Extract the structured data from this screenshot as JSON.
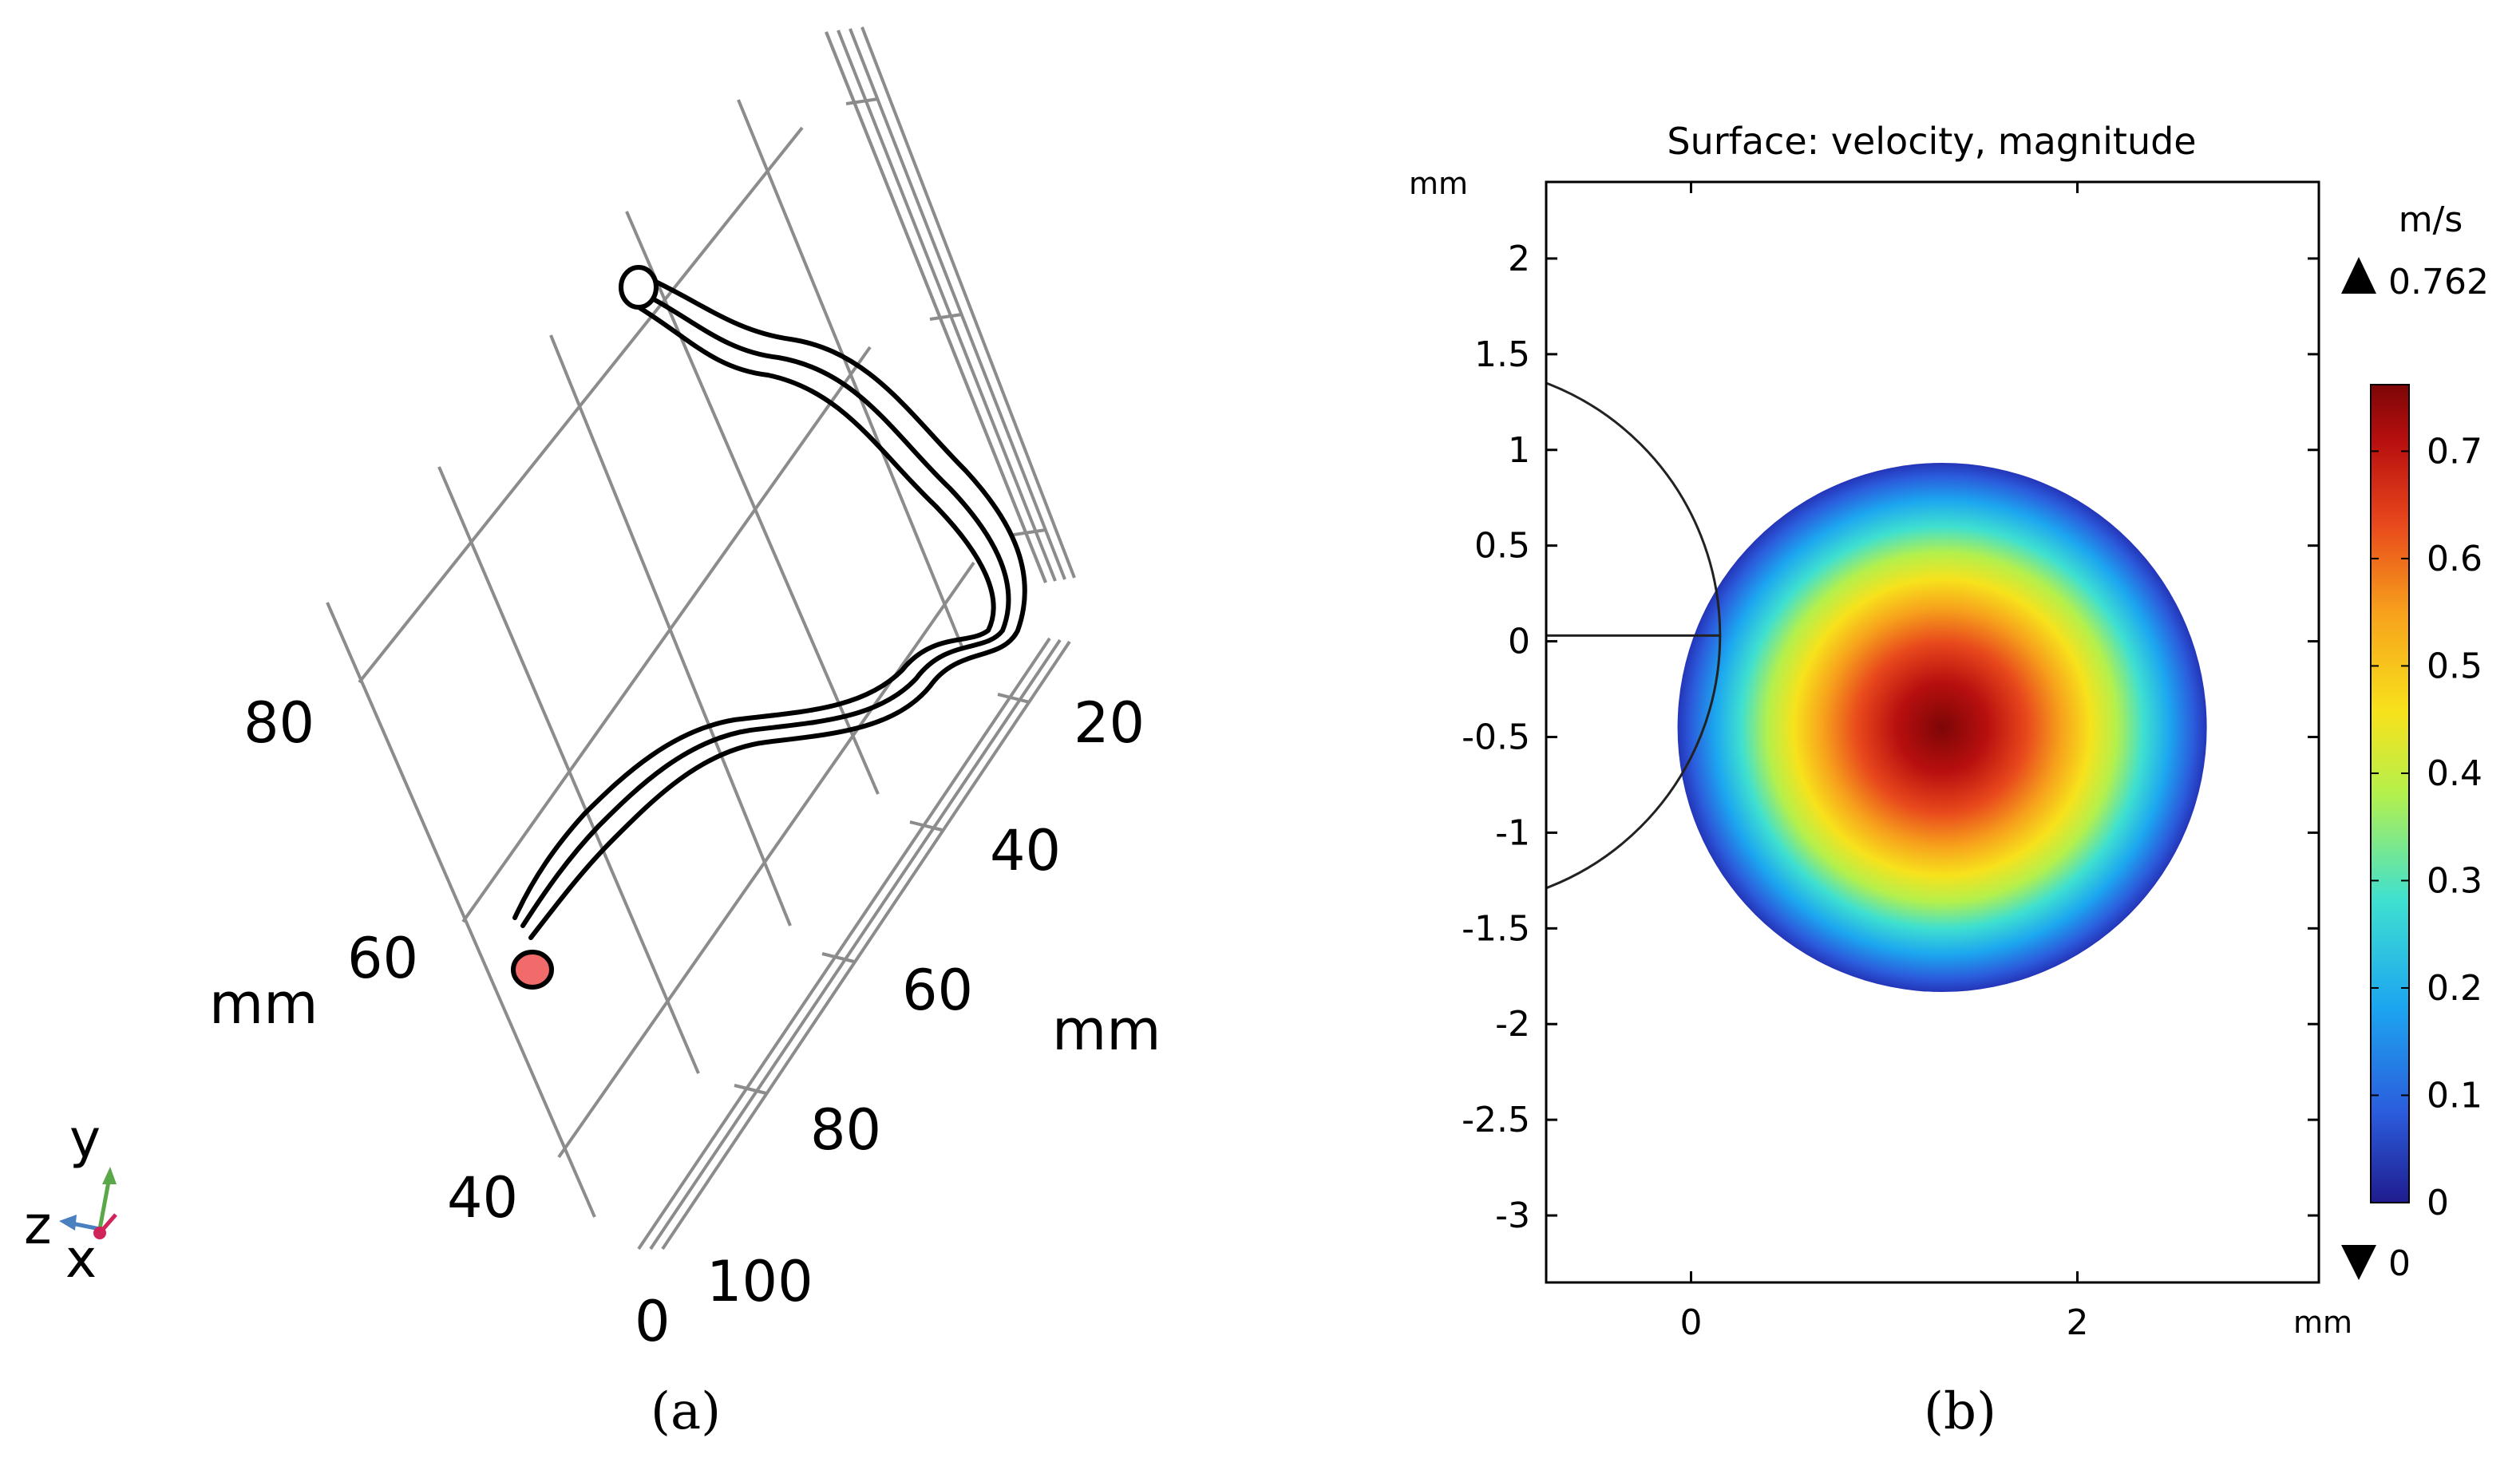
{
  "captions": {
    "a": "(a)",
    "b": "(b)"
  },
  "panel_a": {
    "left_axis": {
      "unit": "mm",
      "ticks": [
        "80",
        "60",
        "40"
      ]
    },
    "right_axis": {
      "unit": "mm",
      "ticks": [
        "20",
        "40",
        "60",
        "80",
        "100"
      ]
    },
    "bottom_tick": "0",
    "triad": {
      "y": "y",
      "z": "z",
      "x": "x"
    },
    "colors": {
      "tube": "#000000",
      "grid": "#8c8c8c",
      "inlet": "#f26b6b",
      "y_axis": "#5aa84a",
      "z_axis": "#4a7fc0",
      "x_axis": "#d0245a"
    }
  },
  "chart_data": {
    "type": "heatmap",
    "title": "Surface: velocity, magnitude",
    "x_unit": "mm",
    "y_unit": "mm",
    "xlim": [
      -0.75,
      3.25
    ],
    "ylim": [
      -3.35,
      2.4
    ],
    "x_ticks": [
      0,
      2
    ],
    "x_tick_labels": [
      "0",
      "2"
    ],
    "y_ticks": [
      2,
      1.5,
      1,
      0.5,
      0,
      -0.5,
      -1,
      -1.5,
      -2,
      -2.5,
      -3
    ],
    "y_tick_labels": [
      "2",
      "1.5",
      "1",
      "0.5",
      "0",
      "-0.5",
      "-1",
      "-1.5",
      "-2",
      "-2.5",
      "-3"
    ],
    "disc": {
      "center_x": 1.3,
      "center_y": -0.45,
      "radius": 1.37,
      "peak_velocity": 0.762
    },
    "overlay_arc": {
      "center_x": -1.25,
      "center_y": 0.03,
      "radius": 1.4
    },
    "overlay_line": {
      "x_start": -0.75,
      "x_end": 0.15,
      "y": 0.03
    },
    "colorbar": {
      "unit": "m/s",
      "max_label": "0.762",
      "min_label": "0",
      "range": [
        0,
        0.762
      ],
      "ticks": [
        0,
        0.1,
        0.2,
        0.3,
        0.4,
        0.5,
        0.6,
        0.7
      ],
      "tick_labels": [
        "0",
        "0.1",
        "0.2",
        "0.3",
        "0.4",
        "0.5",
        "0.6",
        "0.7"
      ],
      "colormap": [
        "#1f1c8f",
        "#2b5cdc",
        "#1ca6f0",
        "#3fe0d0",
        "#b4f04c",
        "#f7e21c",
        "#f7a21c",
        "#e8481c",
        "#b80f0f",
        "#7d0606"
      ]
    }
  }
}
